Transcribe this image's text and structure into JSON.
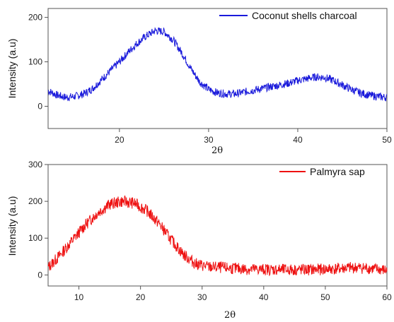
{
  "chart_data": [
    {
      "type": "line",
      "xlabel": "2θ",
      "ylabel": "Intensity (a.u)",
      "xlim": [
        12,
        50
      ],
      "ylim": [
        -50,
        220
      ],
      "xticks": [
        20,
        30,
        40,
        50
      ],
      "yticks": [
        0,
        100,
        200
      ],
      "grid": false,
      "legend_position": "top-right",
      "series": [
        {
          "name": "Coconut shells charcoal",
          "color": "#1a1adb",
          "x": [
            12,
            13,
            14,
            15,
            16,
            17,
            18,
            19,
            20,
            21,
            22,
            23,
            24,
            25,
            26,
            27,
            28,
            29,
            30,
            31,
            32,
            33,
            34,
            35,
            36,
            37,
            38,
            39,
            40,
            41,
            42,
            43,
            44,
            45,
            46,
            47,
            48,
            49,
            50
          ],
          "y": [
            35,
            25,
            20,
            22,
            28,
            40,
            60,
            80,
            100,
            122,
            142,
            158,
            170,
            168,
            150,
            120,
            85,
            55,
            38,
            30,
            28,
            28,
            32,
            36,
            40,
            44,
            48,
            52,
            58,
            62,
            66,
            65,
            58,
            48,
            38,
            30,
            25,
            22,
            20
          ]
        }
      ]
    },
    {
      "type": "line",
      "xlabel": "2θ",
      "ylabel": "Intensity (a.u)",
      "xlim": [
        5,
        60
      ],
      "ylim": [
        -30,
        300
      ],
      "xticks": [
        10,
        20,
        30,
        40,
        50,
        60
      ],
      "yticks": [
        0,
        100,
        200,
        300
      ],
      "grid": false,
      "legend_position": "top-right",
      "series": [
        {
          "name": "Palmyra sap",
          "color": "#ee1111",
          "x": [
            5,
            7,
            9,
            11,
            13,
            15,
            17,
            19,
            21,
            23,
            25,
            27,
            29,
            31,
            33,
            35,
            37,
            39,
            41,
            43,
            45,
            47,
            49,
            51,
            53,
            55,
            57,
            59,
            60
          ],
          "y": [
            20,
            55,
            95,
            135,
            168,
            192,
            200,
            195,
            175,
            140,
            95,
            55,
            30,
            22,
            20,
            18,
            16,
            15,
            15,
            14,
            14,
            14,
            15,
            16,
            18,
            20,
            18,
            14,
            12
          ]
        }
      ]
    }
  ]
}
